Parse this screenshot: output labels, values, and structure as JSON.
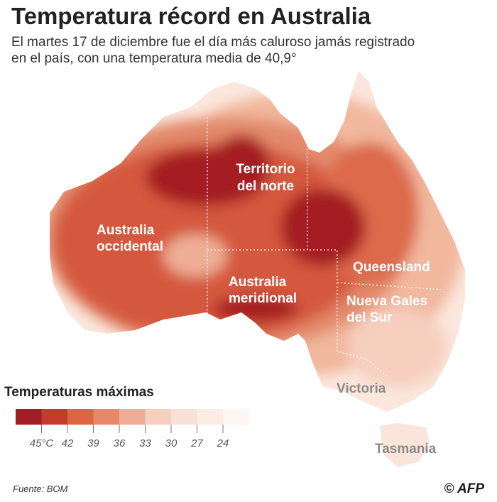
{
  "header": {
    "title": "Temperatura récord en Australia",
    "subtitle_lines": [
      "El martes 17 de diciembre fue el día más caluroso jamás registrado",
      "en el país, con una temperatura media de 40,9°"
    ]
  },
  "map": {
    "regions": [
      {
        "lines": [
          "Territorio",
          "del norte"
        ]
      },
      {
        "lines": [
          "Australia",
          "occidental"
        ]
      },
      {
        "lines": [
          "Australia",
          "meridional"
        ]
      },
      {
        "lines": [
          "Queensland"
        ]
      },
      {
        "lines": [
          "Nueva Gales",
          "del Sur"
        ]
      },
      {
        "lines": [
          "Victoria"
        ]
      },
      {
        "lines": [
          "Tasmania"
        ]
      }
    ]
  },
  "legend": {
    "title": "Temperaturas máximas",
    "colors": [
      "#a51d24",
      "#c43a2b",
      "#dd6446",
      "#e4876a",
      "#eeae95",
      "#f6cfbf",
      "#fae1d6",
      "#fcece4",
      "#fef6f2"
    ],
    "ticks": [
      {
        "value": 45,
        "label": "45°C"
      },
      42,
      39,
      36,
      33,
      30,
      27,
      24
    ]
  },
  "footer": {
    "source": "Fuente: BOM",
    "credit": "© AFP"
  }
}
